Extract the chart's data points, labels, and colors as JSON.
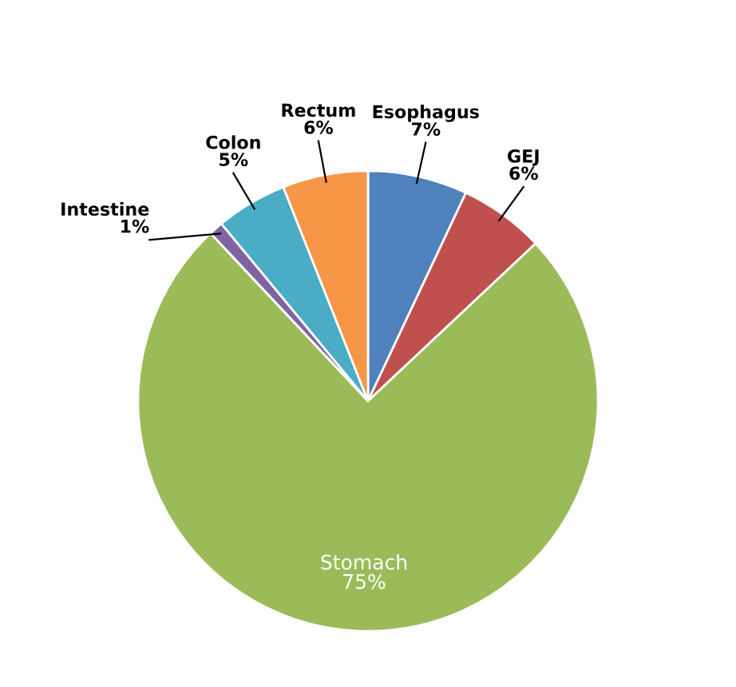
{
  "chart_data": {
    "type": "pie",
    "categories": [
      "Esophagus",
      "GEJ",
      "Stomach",
      "Intestine",
      "Colon",
      "Rectum"
    ],
    "values": [
      7,
      6,
      75,
      1,
      5,
      6
    ],
    "value_labels": [
      "7%",
      "6%",
      "75%",
      "1%",
      "5%",
      "6%"
    ],
    "colors": [
      "#4f81bd",
      "#c0504d",
      "#9bbb59",
      "#8064a2",
      "#4bacc6",
      "#f79646"
    ]
  }
}
